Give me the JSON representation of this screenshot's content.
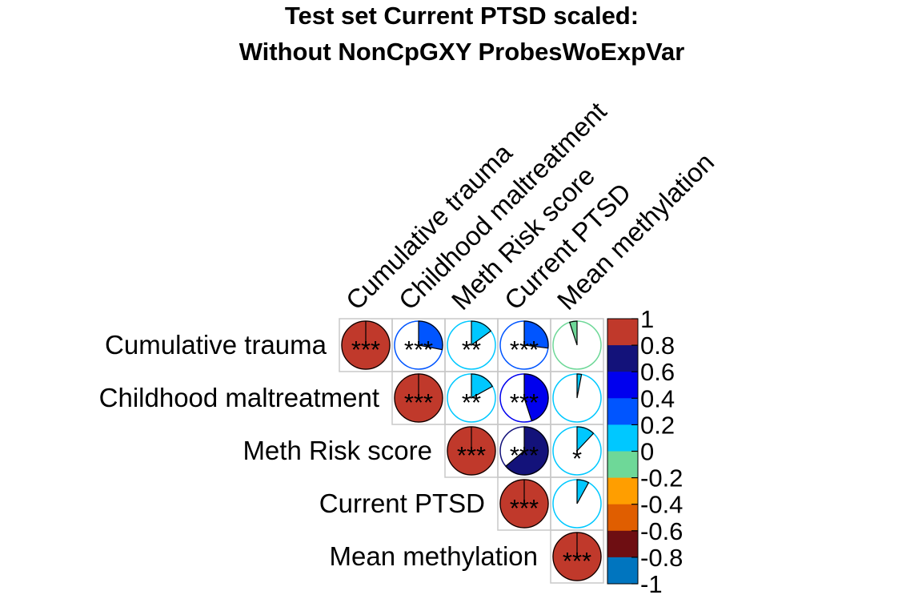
{
  "chart_data": {
    "type": "correlation-pie",
    "title_line1": "Test set Current PTSD scaled:",
    "title_line2": "Without NonCpGXY ProbesWoExpVar",
    "variables": [
      "Cumulative trauma",
      "Childhood maltreatment",
      "Meth Risk score",
      "Current PTSD",
      "Mean methylation"
    ],
    "matrix": [
      [
        1.0,
        0.28,
        0.15,
        0.27,
        -0.05
      ],
      [
        0.28,
        1.0,
        0.17,
        0.45,
        0.03
      ],
      [
        0.15,
        0.17,
        1.0,
        0.64,
        0.12
      ],
      [
        0.27,
        0.45,
        0.64,
        1.0,
        0.08
      ],
      [
        -0.05,
        0.03,
        0.12,
        0.08,
        1.0
      ]
    ],
    "significance": [
      [
        "***",
        "***",
        "**",
        "***",
        ""
      ],
      [
        "***",
        "***",
        "**",
        "***",
        ""
      ],
      [
        "**",
        "**",
        "***",
        "***",
        "*"
      ],
      [
        "***",
        "***",
        "***",
        "***",
        ""
      ],
      [
        "",
        "",
        "*",
        "",
        "***"
      ]
    ],
    "layout": "upper",
    "colorbar": {
      "ticks": [
        "1",
        "0.8",
        "0.6",
        "0.4",
        "0.2",
        "0",
        "-0.2",
        "-0.4",
        "-0.6",
        "-0.8",
        "-1"
      ],
      "range": [
        -1,
        1
      ],
      "colors": [
        "#C0392B",
        "#13127A",
        "#0000EE",
        "#0055FF",
        "#00C8FF",
        "#6ED898",
        "#FF9E00",
        "#E05E00",
        "#6E0E12",
        "#0075BF"
      ]
    }
  }
}
